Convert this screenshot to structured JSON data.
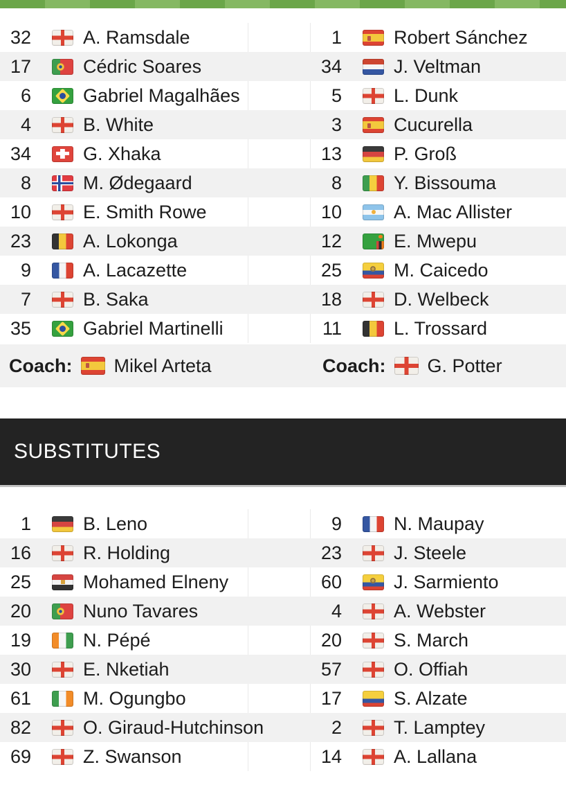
{
  "labels": {
    "coach": "Coach:",
    "substitutes": "SUBSTITUTES"
  },
  "colors": {
    "pitch_stripe_dark": "#6BA649",
    "pitch_stripe_light": "#85B862",
    "row_alternate": "#f1f1f1",
    "substitutes_bar_background": "#232323",
    "substitutes_bar_text": "#ffffff",
    "text": "#1c1c1c"
  },
  "lineups": {
    "left": {
      "coach": {
        "name": "Mikel Arteta",
        "flag": "spain"
      },
      "players": [
        {
          "number": "32",
          "name": "A. Ramsdale",
          "flag": "england"
        },
        {
          "number": "17",
          "name": "Cédric Soares",
          "flag": "portugal"
        },
        {
          "number": "6",
          "name": "Gabriel Magalhães",
          "flag": "brazil"
        },
        {
          "number": "4",
          "name": "B. White",
          "flag": "england"
        },
        {
          "number": "34",
          "name": "G. Xhaka",
          "flag": "switzerland"
        },
        {
          "number": "8",
          "name": "M. Ødegaard",
          "flag": "norway"
        },
        {
          "number": "10",
          "name": "E. Smith Rowe",
          "flag": "england"
        },
        {
          "number": "23",
          "name": "A. Lokonga",
          "flag": "belgium"
        },
        {
          "number": "9",
          "name": "A. Lacazette",
          "flag": "france"
        },
        {
          "number": "7",
          "name": "B. Saka",
          "flag": "england"
        },
        {
          "number": "35",
          "name": "Gabriel Martinelli",
          "flag": "brazil"
        }
      ]
    },
    "right": {
      "coach": {
        "name": "G. Potter",
        "flag": "england"
      },
      "players": [
        {
          "number": "1",
          "name": "Robert Sánchez",
          "flag": "spain"
        },
        {
          "number": "34",
          "name": "J. Veltman",
          "flag": "netherlands"
        },
        {
          "number": "5",
          "name": "L. Dunk",
          "flag": "england"
        },
        {
          "number": "3",
          "name": "Cucurella",
          "flag": "spain"
        },
        {
          "number": "13",
          "name": "P. Groß",
          "flag": "germany"
        },
        {
          "number": "8",
          "name": "Y. Bissouma",
          "flag": "mali"
        },
        {
          "number": "10",
          "name": "A. Mac Allister",
          "flag": "argentina"
        },
        {
          "number": "12",
          "name": "E. Mwepu",
          "flag": "zambia"
        },
        {
          "number": "25",
          "name": "M. Caicedo",
          "flag": "ecuador"
        },
        {
          "number": "18",
          "name": "D. Welbeck",
          "flag": "england"
        },
        {
          "number": "11",
          "name": "L. Trossard",
          "flag": "belgium"
        }
      ]
    }
  },
  "substitutes": {
    "left": [
      {
        "number": "1",
        "name": "B. Leno",
        "flag": "germany"
      },
      {
        "number": "16",
        "name": "R. Holding",
        "flag": "england"
      },
      {
        "number": "25",
        "name": "Mohamed Elneny",
        "flag": "egypt"
      },
      {
        "number": "20",
        "name": "Nuno Tavares",
        "flag": "portugal"
      },
      {
        "number": "19",
        "name": "N. Pépé",
        "flag": "ivory-coast"
      },
      {
        "number": "30",
        "name": "E. Nketiah",
        "flag": "england"
      },
      {
        "number": "61",
        "name": "M. Ogungbo",
        "flag": "ireland"
      },
      {
        "number": "82",
        "name": "O. Giraud-Hutchinson",
        "flag": "england"
      },
      {
        "number": "69",
        "name": "Z. Swanson",
        "flag": "england"
      }
    ],
    "right": [
      {
        "number": "9",
        "name": "N. Maupay",
        "flag": "france"
      },
      {
        "number": "23",
        "name": "J. Steele",
        "flag": "england"
      },
      {
        "number": "60",
        "name": "J. Sarmiento",
        "flag": "ecuador"
      },
      {
        "number": "4",
        "name": "A. Webster",
        "flag": "england"
      },
      {
        "number": "20",
        "name": "S. March",
        "flag": "england"
      },
      {
        "number": "57",
        "name": "O. Offiah",
        "flag": "england"
      },
      {
        "number": "17",
        "name": "S. Alzate",
        "flag": "colombia"
      },
      {
        "number": "2",
        "name": "T. Lamptey",
        "flag": "england"
      },
      {
        "number": "14",
        "name": "A. Lallana",
        "flag": "england"
      }
    ]
  }
}
